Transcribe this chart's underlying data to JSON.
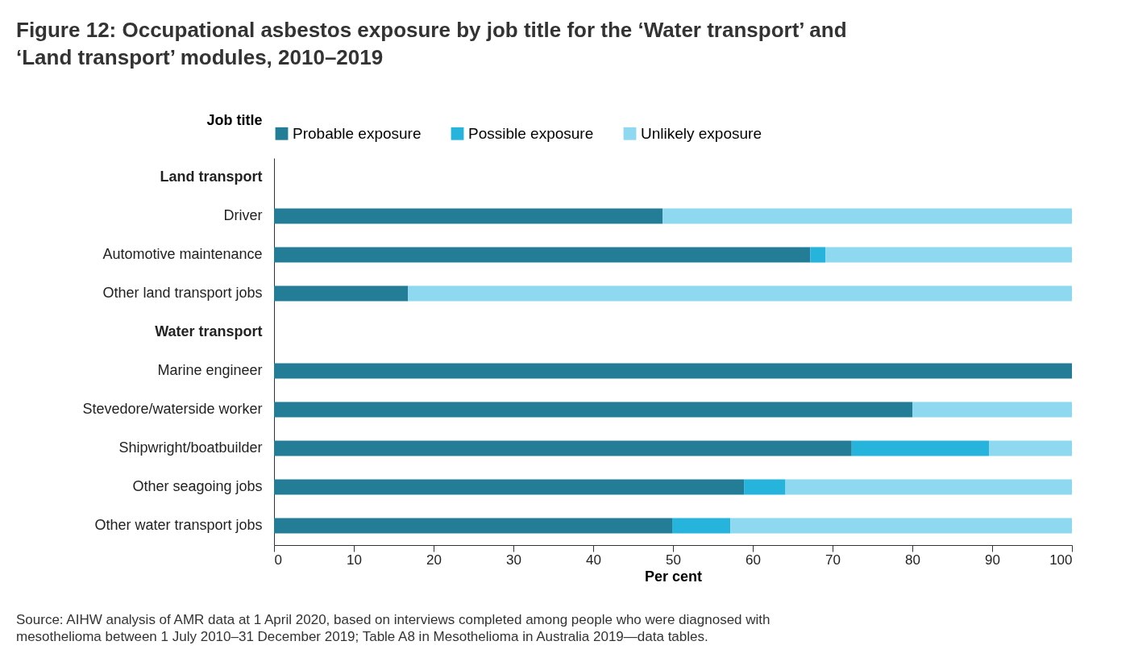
{
  "chart_data": {
    "type": "bar",
    "orientation": "horizontal",
    "stacked": true,
    "title": "Figure 12: Occupational asbestos exposure by job title for the ‘Water transport’ and ‘Land transport’ modules, 2010–2019",
    "ylabel": "Job title",
    "xlabel": "Per cent",
    "categories": [
      "Land transport",
      "Driver",
      "Automotive maintenance",
      "Other land transport jobs",
      "Water transport",
      "Marine engineer",
      "Stevedore/waterside worker",
      "Shipwright/boatbuilder",
      "Other seagoing jobs",
      "Other water transport jobs"
    ],
    "series": [
      {
        "name": "Probable exposure",
        "color": "#237d96",
        "values": [
          null,
          48.7,
          67.2,
          16.8,
          null,
          100,
          80,
          72.4,
          58.9,
          49.9
        ]
      },
      {
        "name": "Possible exposure",
        "color": "#27b4dc",
        "values": [
          null,
          null,
          1.9,
          null,
          null,
          null,
          null,
          17.2,
          5.2,
          7.3
        ]
      },
      {
        "name": "Unlikely exposure",
        "color": "#8ed8f0",
        "values": [
          null,
          51.3,
          30.9,
          83.2,
          null,
          null,
          20,
          10.4,
          35.9,
          42.8
        ]
      }
    ],
    "xlim": [
      0,
      100
    ],
    "xticks": [
      0,
      10,
      20,
      30,
      40,
      50,
      60,
      70,
      80,
      90,
      100
    ],
    "grid": false,
    "legend": "top",
    "annotations": [
      "Source: AIHW analysis of AMR data at 1 April 2020, based on interviews completed among people who were diagnosed with mesothelioma between 1 July 2010–31 December 2019; Table A8 in Mesothelioma in Australia 2019—data tables."
    ]
  }
}
